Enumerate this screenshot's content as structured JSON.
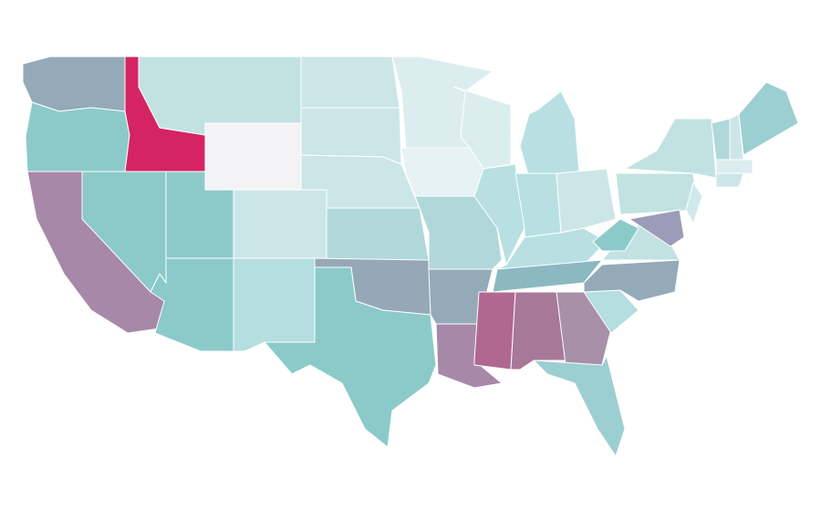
{
  "map": {
    "regions": [
      {
        "color": "#94aab8"
      },
      {
        "color": "#8ccaca"
      },
      {
        "color": "#d42464"
      },
      {
        "color": "#c2e2e2"
      },
      {
        "color": "#f3f3f5"
      },
      {
        "color": "#a888a8"
      },
      {
        "color": "#8ccaca"
      },
      {
        "color": "#8ccaca"
      },
      {
        "color": "#8ccaca"
      },
      {
        "color": "#cce6e8"
      },
      {
        "color": "#b4dedf"
      },
      {
        "color": "#cce6e8"
      },
      {
        "color": "#cce6e8"
      },
      {
        "color": "#cce6e8"
      },
      {
        "color": "#b0d8da"
      },
      {
        "color": "#96a8b8"
      },
      {
        "color": "#8ccaca"
      },
      {
        "color": "#dcedf0"
      },
      {
        "color": "#e6f2f3"
      },
      {
        "color": "#b0d8da"
      },
      {
        "color": "#94aab8"
      },
      {
        "color": "#a888a8"
      },
      {
        "color": "#dcedf0"
      },
      {
        "color": "#b8e0e2"
      },
      {
        "color": "#b8e0e2"
      },
      {
        "color": "#b8e0e2"
      },
      {
        "color": "#cce6e8"
      },
      {
        "color": "#b8e0e2"
      },
      {
        "color": "#8cb8c2"
      },
      {
        "color": "#b06890"
      },
      {
        "color": "#a87898"
      },
      {
        "color": "#a890a8"
      },
      {
        "color": "#9ccfd2"
      },
      {
        "color": "#b4dedf"
      },
      {
        "color": "#94aab8"
      },
      {
        "color": "#c2e2e2"
      },
      {
        "color": "#8ccaca"
      },
      {
        "color": "#c2e2e2"
      },
      {
        "color": "#c2e2e2"
      },
      {
        "color": "#9c9cb8"
      },
      {
        "color": "#d0eaec"
      },
      {
        "color": "#b0d8da"
      },
      {
        "color": "#cce6e8"
      },
      {
        "color": "#9ccfd2"
      },
      {
        "color": "#dcedf0"
      },
      {
        "color": "#cce6e8"
      }
    ]
  }
}
